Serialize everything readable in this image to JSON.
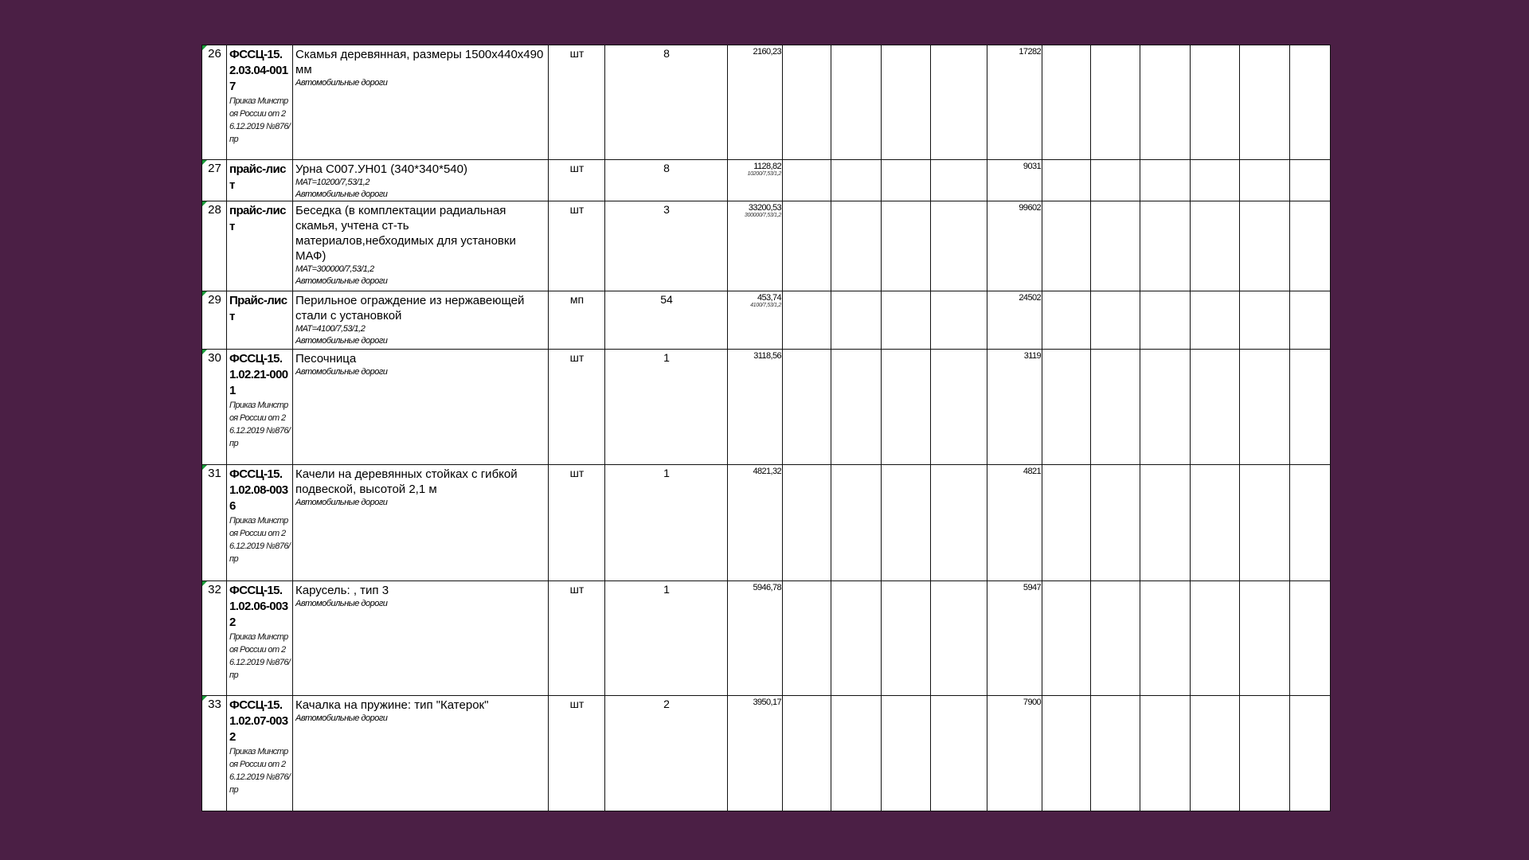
{
  "background_color": "#4b1f45",
  "comment_indicator_color": "#1a9a3a",
  "rows": [
    {
      "num": "26",
      "code": "ФССЦ-15.2.03.04-0017",
      "code_note": "Приказ Минстроя России от 26.12.2019 №876/пр",
      "name": "Скамья деревянная, размеры 1500х440х490 мм",
      "mat": "",
      "category": "Автомобильные дороги",
      "unit": "шт",
      "qty": "8",
      "price": "2160,23",
      "price_note": "",
      "total": "17282"
    },
    {
      "num": "27",
      "code": "прайс-лист",
      "code_note": "",
      "name": "Урна  С007.УН01 (340*340*540)",
      "mat": "МАТ=10200/7,53/1,2",
      "category": "Автомобильные дороги",
      "unit": "шт",
      "qty": "8",
      "price": "1128,82",
      "price_note": "10200/7,53/1,2",
      "total": "9031"
    },
    {
      "num": "28",
      "code": "прайс-лист",
      "code_note": "",
      "name": "Беседка (в комплектации радиальная скамья, учтена ст-ть материалов,небходимых для установки МАФ)",
      "mat": "МАТ=300000/7,53/1,2",
      "category": "Автомобильные дороги",
      "unit": "шт",
      "qty": "3",
      "price": "33200,53",
      "price_note": "300000/7,53/1,2",
      "total": "99602"
    },
    {
      "num": "29",
      "code": "Прайс-лист",
      "code_note": "",
      "name": "Перильное ограждение из нержавеющей стали с установкой",
      "mat": "МАТ=4100/7,53/1,2",
      "category": "Автомобильные дороги",
      "unit": "мп",
      "qty": "54",
      "price": "453,74",
      "price_note": "4100/7,53/1,2",
      "total": "24502"
    },
    {
      "num": "30",
      "code": "ФССЦ-15.1.02.21-0001",
      "code_note": "Приказ Минстроя России от 26.12.2019 №876/пр",
      "name": "Песочница",
      "mat": "",
      "category": "Автомобильные дороги",
      "unit": "шт",
      "qty": "1",
      "price": "3118,56",
      "price_note": "",
      "total": "3119"
    },
    {
      "num": "31",
      "code": "ФССЦ-15.1.02.08-0036",
      "code_note": "Приказ Минстроя России от 26.12.2019 №876/пр",
      "name": "Качели на деревянных стойках с гибкой подвеской, высотой 2,1 м",
      "mat": "",
      "category": "Автомобильные дороги",
      "unit": "шт",
      "qty": "1",
      "price": "4821,32",
      "price_note": "",
      "total": "4821"
    },
    {
      "num": "32",
      "code": "ФССЦ-15.1.02.06-0032",
      "code_note": "Приказ Минстроя России от 26.12.2019 №876/пр",
      "name": "Карусель: , тип 3",
      "mat": "",
      "category": "Автомобильные дороги",
      "unit": "шт",
      "qty": "1",
      "price": "5946,78",
      "price_note": "",
      "total": "5947"
    },
    {
      "num": "33",
      "code": "ФССЦ-15.1.02.07-0032",
      "code_note": "Приказ Минстроя России от 26.12.2019 №876/пр",
      "name": "Качалка на пружине: тип \"Катерок\"",
      "mat": "",
      "category": "Автомобильные дороги",
      "unit": "шт",
      "qty": "2",
      "price": "3950,17",
      "price_note": "",
      "total": "7900"
    }
  ]
}
